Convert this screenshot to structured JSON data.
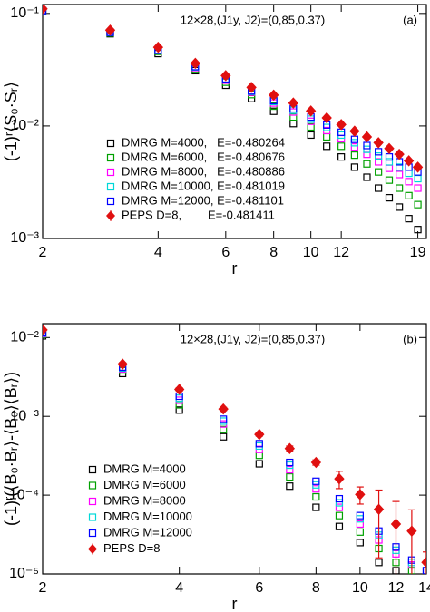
{
  "chart_data": [
    {
      "type": "scatter",
      "annotation": "12×28,(J1y, J2)=(0,85,0.37)",
      "panel_label": "(a)",
      "x_label": "r",
      "y_label": "(-1)ʳ⟨S₀·Sᵣ⟩",
      "xscale": "log",
      "yscale": "log",
      "legend": "lower left",
      "xlim": [
        2,
        20
      ],
      "ylim": [
        0.001,
        0.12
      ],
      "xticks": [
        2,
        4,
        6,
        8,
        10,
        12,
        19
      ],
      "yticks": [
        {
          "value": 0.001,
          "label": "10⁻³"
        },
        {
          "value": 0.01,
          "label": "10⁻²"
        },
        {
          "value": 0.1,
          "label": "10⁻¹"
        }
      ],
      "x": [
        2,
        3,
        4,
        5,
        6,
        7,
        8,
        9,
        10,
        11,
        12,
        13,
        14,
        15,
        16,
        17,
        18,
        19
      ],
      "series": [
        {
          "name": "DMRG M=4000,   E=-0.480264",
          "color": "#000000",
          "marker": "square",
          "values": [
            0.105,
            0.066,
            0.044,
            0.031,
            0.023,
            0.0175,
            0.0135,
            0.0105,
            0.0083,
            0.0066,
            0.0053,
            0.0043,
            0.0035,
            0.0028,
            0.0023,
            0.0019,
            0.0015,
            0.0012
          ]
        },
        {
          "name": "DMRG M=6000,   E=-0.480676",
          "color": "#00a000",
          "marker": "square",
          "values": [
            0.106,
            0.067,
            0.046,
            0.032,
            0.0245,
            0.019,
            0.015,
            0.012,
            0.0098,
            0.008,
            0.0066,
            0.0055,
            0.0046,
            0.0039,
            0.0033,
            0.0028,
            0.0024,
            0.002
          ]
        },
        {
          "name": "DMRG M=8000,   E=-0.480886",
          "color": "#ff00ff",
          "marker": "square",
          "values": [
            0.106,
            0.068,
            0.047,
            0.033,
            0.0255,
            0.02,
            0.016,
            0.0133,
            0.011,
            0.0091,
            0.0077,
            0.0065,
            0.0056,
            0.0048,
            0.0042,
            0.0037,
            0.0032,
            0.0028
          ]
        },
        {
          "name": "DMRG M=10000, E=-0.481019",
          "color": "#00d8d8",
          "marker": "square",
          "values": [
            0.106,
            0.068,
            0.047,
            0.0335,
            0.026,
            0.0203,
            0.0165,
            0.0138,
            0.0115,
            0.0097,
            0.0083,
            0.0071,
            0.0062,
            0.0054,
            0.0048,
            0.0043,
            0.0038,
            0.0034
          ]
        },
        {
          "name": "DMRG M=12000, E=-0.481101",
          "color": "#0000ff",
          "marker": "square",
          "values": [
            0.106,
            0.068,
            0.047,
            0.0337,
            0.0262,
            0.0205,
            0.0168,
            0.0142,
            0.012,
            0.0102,
            0.0088,
            0.0076,
            0.0067,
            0.0059,
            0.0053,
            0.0048,
            0.0043,
            0.0039
          ]
        },
        {
          "name": "PEPS D=8,        E=-0.481411",
          "color": "#e01010",
          "marker": "diamond",
          "values": [
            0.11,
            0.071,
            0.05,
            0.036,
            0.028,
            0.022,
            0.0188,
            0.016,
            0.0136,
            0.0118,
            0.0103,
            0.009,
            0.008,
            0.0071,
            0.0063,
            0.0056,
            0.0049,
            0.0043
          ]
        }
      ]
    },
    {
      "type": "scatter",
      "annotation": "12×28,(J1y, J2)=(0,85,0.37)",
      "panel_label": "(b)",
      "x_label": "r",
      "y_label": "(-1)ʳ(⟨B₀·Bᵣ⟩-⟨B₀⟩⟨Bᵣ⟩)",
      "xscale": "log",
      "yscale": "log",
      "legend": "lower left",
      "xlim": [
        2,
        14
      ],
      "ylim": [
        1e-05,
        0.015
      ],
      "xticks": [
        2,
        4,
        6,
        8,
        10,
        12,
        14
      ],
      "yticks": [
        {
          "value": 1e-05,
          "label": "10⁻⁵"
        },
        {
          "value": 0.0001,
          "label": "10⁻⁴"
        },
        {
          "value": 0.001,
          "label": "10⁻³"
        },
        {
          "value": 0.01,
          "label": "10⁻²"
        }
      ],
      "x": [
        2,
        3,
        4,
        5,
        6,
        7,
        8,
        9,
        10,
        11,
        12,
        13,
        14
      ],
      "series": [
        {
          "name": "DMRG M=4000",
          "color": "#000000",
          "marker": "square",
          "values": [
            0.0105,
            0.0035,
            0.0012,
            0.00055,
            0.00025,
            0.00013,
            7e-05,
            4e-05,
            2.5e-05,
            1.4e-05,
            1.1e-05,
            null,
            null
          ]
        },
        {
          "name": "DMRG M=6000",
          "color": "#00a000",
          "marker": "square",
          "values": [
            0.011,
            0.0038,
            0.0014,
            0.00068,
            0.00032,
            0.00017,
            9.5e-05,
            5.5e-05,
            3.4e-05,
            2.1e-05,
            1.4e-05,
            1.1e-05,
            null
          ]
        },
        {
          "name": "DMRG M=8000",
          "color": "#ff00ff",
          "marker": "square",
          "values": [
            0.0112,
            0.004,
            0.0016,
            0.0008,
            0.00038,
            0.00021,
            0.00012,
            7e-05,
            4.3e-05,
            2.7e-05,
            1.8e-05,
            1.3e-05,
            1.1e-05
          ]
        },
        {
          "name": "DMRG M=10000",
          "color": "#00d8d8",
          "marker": "square",
          "values": [
            0.0114,
            0.0041,
            0.0017,
            0.00087,
            0.00042,
            0.00024,
            0.000135,
            8e-05,
            5e-05,
            3.1e-05,
            2e-05,
            1.4e-05,
            1.1e-05
          ]
        },
        {
          "name": "DMRG M=12000",
          "color": "#0000ff",
          "marker": "square",
          "values": [
            0.0115,
            0.0042,
            0.0018,
            0.00092,
            0.00045,
            0.00026,
            0.00015,
            9e-05,
            5.5e-05,
            3.5e-05,
            2.2e-05,
            1.5e-05,
            1.1e-05
          ]
        },
        {
          "name": "PEPS D=8",
          "color": "#e01010",
          "marker": "diamond",
          "values": [
            0.0125,
            0.0046,
            0.0022,
            0.00124,
            0.00059,
            0.00039,
            0.00026,
            0.000161,
            0.000102,
            6.6e-05,
            4.3e-05,
            3.5e-05,
            1.4e-05
          ],
          "errors": [
            0.0003,
            0.0002,
            0.0001,
            6e-05,
            3e-05,
            3e-05,
            2e-05,
            4e-05,
            2.5e-05,
            5e-05,
            4e-05,
            3e-05,
            5e-06
          ]
        }
      ]
    }
  ]
}
